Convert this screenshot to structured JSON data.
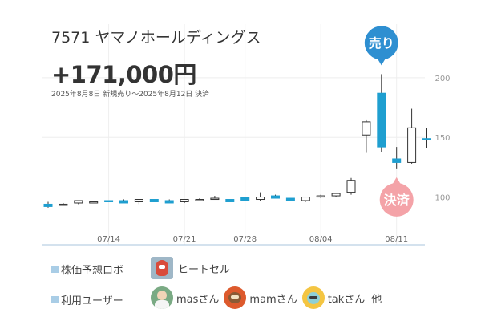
{
  "header": {
    "title": "7571 ヤマノホールディングス",
    "profit": "+171,000円",
    "period": "2025年8月8日 新規売り〜2025年8月12日 決済"
  },
  "chart_data": {
    "type": "candlestick",
    "x_tick_labels": [
      {
        "label": "07/14",
        "index": 4
      },
      {
        "label": "07/21",
        "index": 9
      },
      {
        "label": "07/28",
        "index": 13
      },
      {
        "label": "08/04",
        "index": 18
      },
      {
        "label": "08/11",
        "index": 23
      }
    ],
    "y_ticks": [
      100,
      150,
      200
    ],
    "ylim": [
      60,
      245
    ],
    "y_axis_position": "right",
    "grid": true,
    "colors": {
      "up": "#ffffff",
      "down": "#1f9fd0",
      "wick": "#333333",
      "grid": "#eeeeee",
      "axis": "#aac4dd"
    },
    "candles": [
      {
        "o": 94,
        "h": 96,
        "l": 91,
        "c": 92
      },
      {
        "o": 94,
        "h": 95,
        "l": 93,
        "c": 94
      },
      {
        "o": 95,
        "h": 97,
        "l": 94,
        "c": 97
      },
      {
        "o": 96,
        "h": 97,
        "l": 95,
        "c": 96
      },
      {
        "o": 97,
        "h": 97,
        "l": 96,
        "c": 96
      },
      {
        "o": 97,
        "h": 98,
        "l": 95,
        "c": 95
      },
      {
        "o": 96,
        "h": 98,
        "l": 94,
        "c": 98
      },
      {
        "o": 98,
        "h": 98,
        "l": 96,
        "c": 96
      },
      {
        "o": 97,
        "h": 98,
        "l": 96,
        "c": 95
      },
      {
        "o": 96,
        "h": 98,
        "l": 95,
        "c": 98
      },
      {
        "o": 98,
        "h": 99,
        "l": 97,
        "c": 98
      },
      {
        "o": 99,
        "h": 101,
        "l": 98,
        "c": 99
      },
      {
        "o": 98,
        "h": 98,
        "l": 96,
        "c": 96
      },
      {
        "o": 100,
        "h": 100,
        "l": 97,
        "c": 97
      },
      {
        "o": 98,
        "h": 104,
        "l": 97,
        "c": 100
      },
      {
        "o": 101,
        "h": 102,
        "l": 99,
        "c": 99
      },
      {
        "o": 99,
        "h": 99,
        "l": 97,
        "c": 97
      },
      {
        "o": 97,
        "h": 100,
        "l": 96,
        "c": 100
      },
      {
        "o": 100,
        "h": 102,
        "l": 99,
        "c": 101
      },
      {
        "o": 101,
        "h": 103,
        "l": 100,
        "c": 103
      },
      {
        "o": 104,
        "h": 116,
        "l": 102,
        "c": 114
      },
      {
        "o": 152,
        "h": 165,
        "l": 137,
        "c": 163
      },
      {
        "o": 187,
        "h": 203,
        "l": 138,
        "c": 142
      },
      {
        "o": 132,
        "h": 142,
        "l": 124,
        "c": 129
      },
      {
        "o": 129,
        "h": 174,
        "l": 128,
        "c": 158
      },
      {
        "o": 149,
        "h": 158,
        "l": 141,
        "c": 148
      }
    ],
    "markers": [
      {
        "label": "売り",
        "index": 22,
        "position": "above",
        "color": "#2e8fd1"
      },
      {
        "label": "決済",
        "index": 23,
        "position": "below",
        "color": "#f4a3a8"
      }
    ]
  },
  "footer": {
    "robo_label": "株価予想ロボ",
    "robo_name": "ヒートセル",
    "users_label": "利用ユーザー",
    "users": [
      "masさん",
      "mamさん",
      "takさん"
    ],
    "others": "他"
  }
}
